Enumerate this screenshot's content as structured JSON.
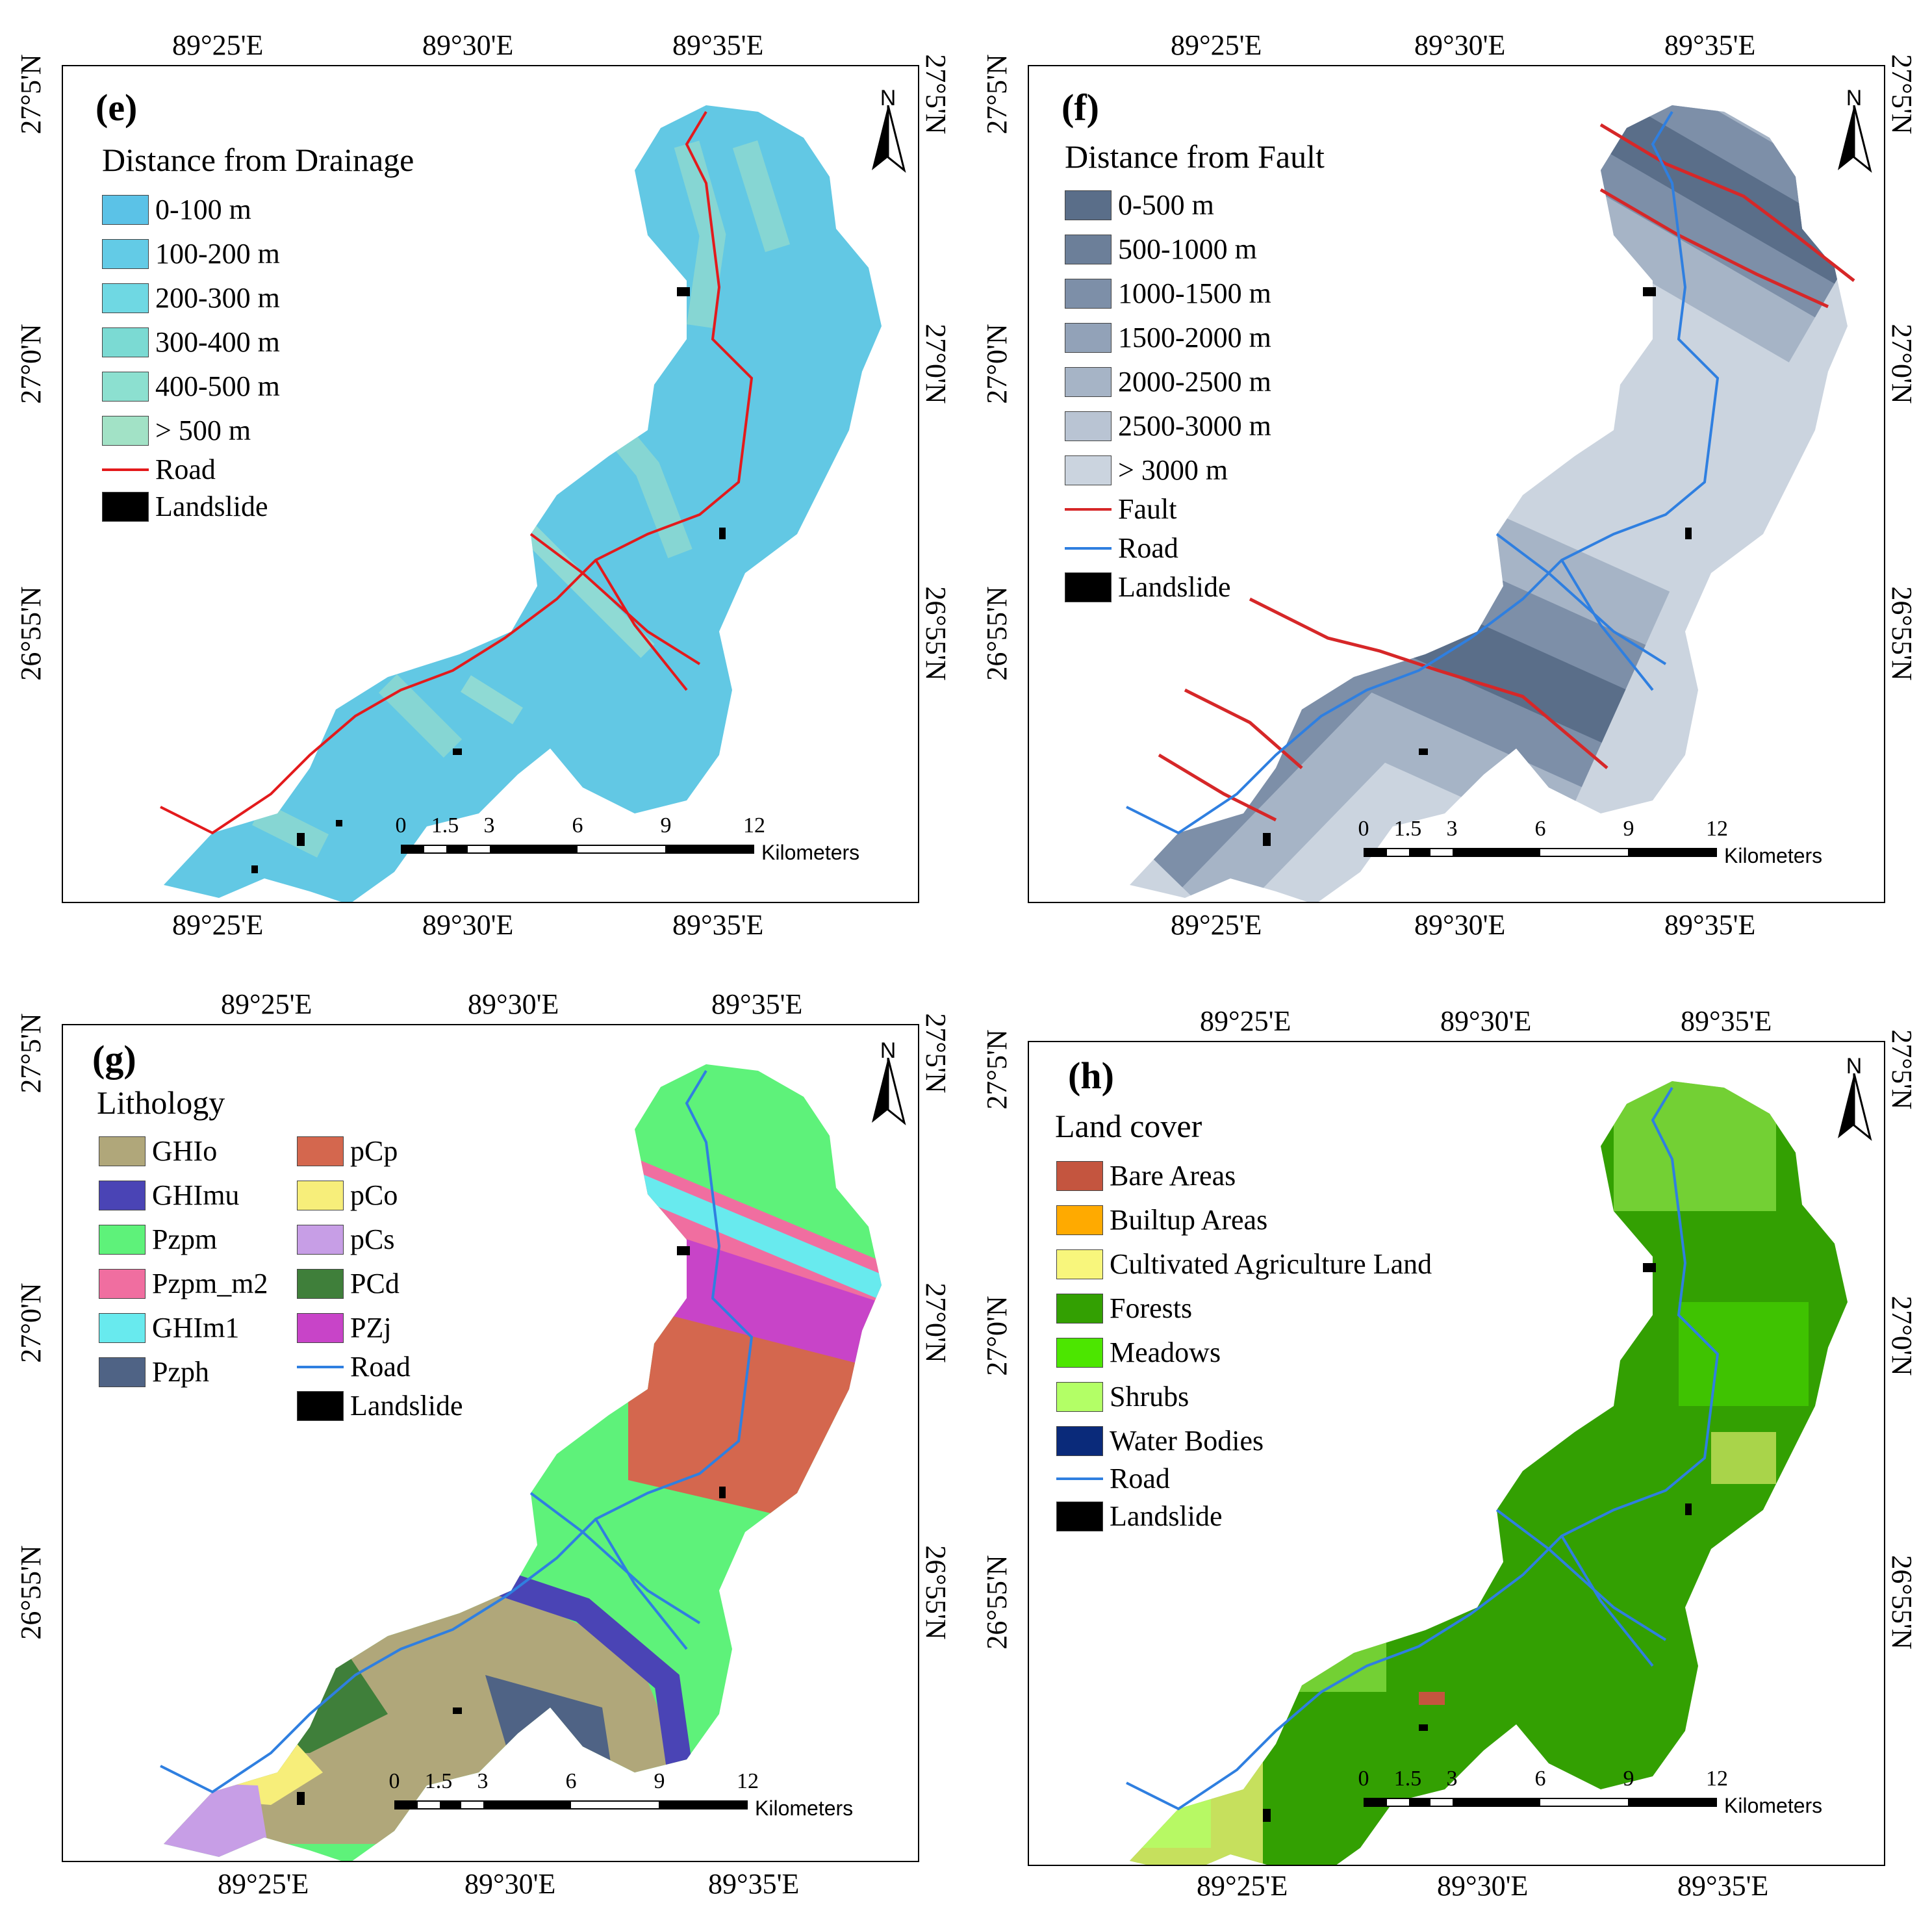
{
  "longitude_labels": [
    "89°25'E",
    "89°30'E",
    "89°35'E"
  ],
  "latitude_labels": [
    "27°5'N",
    "27°0'N",
    "26°55'N"
  ],
  "north_label": "N",
  "scale_bar": {
    "ticks": [
      "0",
      "1.5",
      "3",
      "6",
      "9",
      "12"
    ],
    "unit": "Kilometers"
  },
  "panels": {
    "e": {
      "label": "(e)",
      "legend_title": "Distance from Drainage",
      "classes": [
        {
          "label": "0-100 m",
          "color": "#5bc2e7"
        },
        {
          "label": "100-200 m",
          "color": "#63cbe6"
        },
        {
          "label": "200-300 m",
          "color": "#6fd8e3"
        },
        {
          "label": "300-400 m",
          "color": "#7bdad3"
        },
        {
          "label": "400-500 m",
          "color": "#8ce0d0"
        },
        {
          "label": "> 500 m",
          "color": "#a2e2c6"
        }
      ],
      "road": {
        "label": "Road",
        "color": "#e31a1c"
      },
      "landslide": {
        "label": "Landslide",
        "color": "#000000"
      }
    },
    "f": {
      "label": "(f)",
      "legend_title": "Distance from Fault",
      "classes": [
        {
          "label": "0-500 m",
          "color": "#5a6e89"
        },
        {
          "label": "500-1000 m",
          "color": "#6c7f99"
        },
        {
          "label": "1000-1500 m",
          "color": "#7d8fa8"
        },
        {
          "label": "1500-2000 m",
          "color": "#92a2b8"
        },
        {
          "label": "2000-2500 m",
          "color": "#a6b4c6"
        },
        {
          "label": "2500-3000 m",
          "color": "#b9c4d3"
        },
        {
          "label": "> 3000 m",
          "color": "#cbd4df"
        }
      ],
      "fault": {
        "label": "Fault",
        "color": "#d62728"
      },
      "road": {
        "label": "Road",
        "color": "#2f7fe0"
      },
      "landslide": {
        "label": "Landslide",
        "color": "#000000"
      }
    },
    "g": {
      "label": "(g)",
      "legend_title": "Lithology",
      "classes": [
        {
          "label": "GHIo",
          "color": "#b0a77a"
        },
        {
          "label": "GHImu",
          "color": "#4a44b5"
        },
        {
          "label": "Pzpm",
          "color": "#5ef27a"
        },
        {
          "label": "Pzpm_m2",
          "color": "#f06ea0"
        },
        {
          "label": "GHIm1",
          "color": "#68eaee"
        },
        {
          "label": "Pzph",
          "color": "#4f6385"
        },
        {
          "label": "pCp",
          "color": "#d4674e"
        },
        {
          "label": "pCo",
          "color": "#f7ee7a"
        },
        {
          "label": "pCs",
          "color": "#c79ee6"
        },
        {
          "label": "PCd",
          "color": "#3f7f3a"
        },
        {
          "label": "PZj",
          "color": "#c844c8"
        }
      ],
      "road": {
        "label": "Road",
        "color": "#2f7fe0"
      },
      "landslide": {
        "label": "Landslide",
        "color": "#000000"
      }
    },
    "h": {
      "label": "(h)",
      "legend_title": "Land cover",
      "classes": [
        {
          "label": "Bare Areas",
          "color": "#c4553f"
        },
        {
          "label": "Builtup Areas",
          "color": "#ffaa00"
        },
        {
          "label": "Cultivated Agriculture Land",
          "color": "#f8f67c"
        },
        {
          "label": "Forests",
          "color": "#33a002"
        },
        {
          "label": "Meadows",
          "color": "#4ce600"
        },
        {
          "label": "Shrubs",
          "color": "#b3ff66"
        },
        {
          "label": "Water Bodies",
          "color": "#0a2a7a"
        }
      ],
      "road": {
        "label": "Road",
        "color": "#2f7fe0"
      },
      "landslide": {
        "label": "Landslide",
        "color": "#000000"
      }
    }
  }
}
